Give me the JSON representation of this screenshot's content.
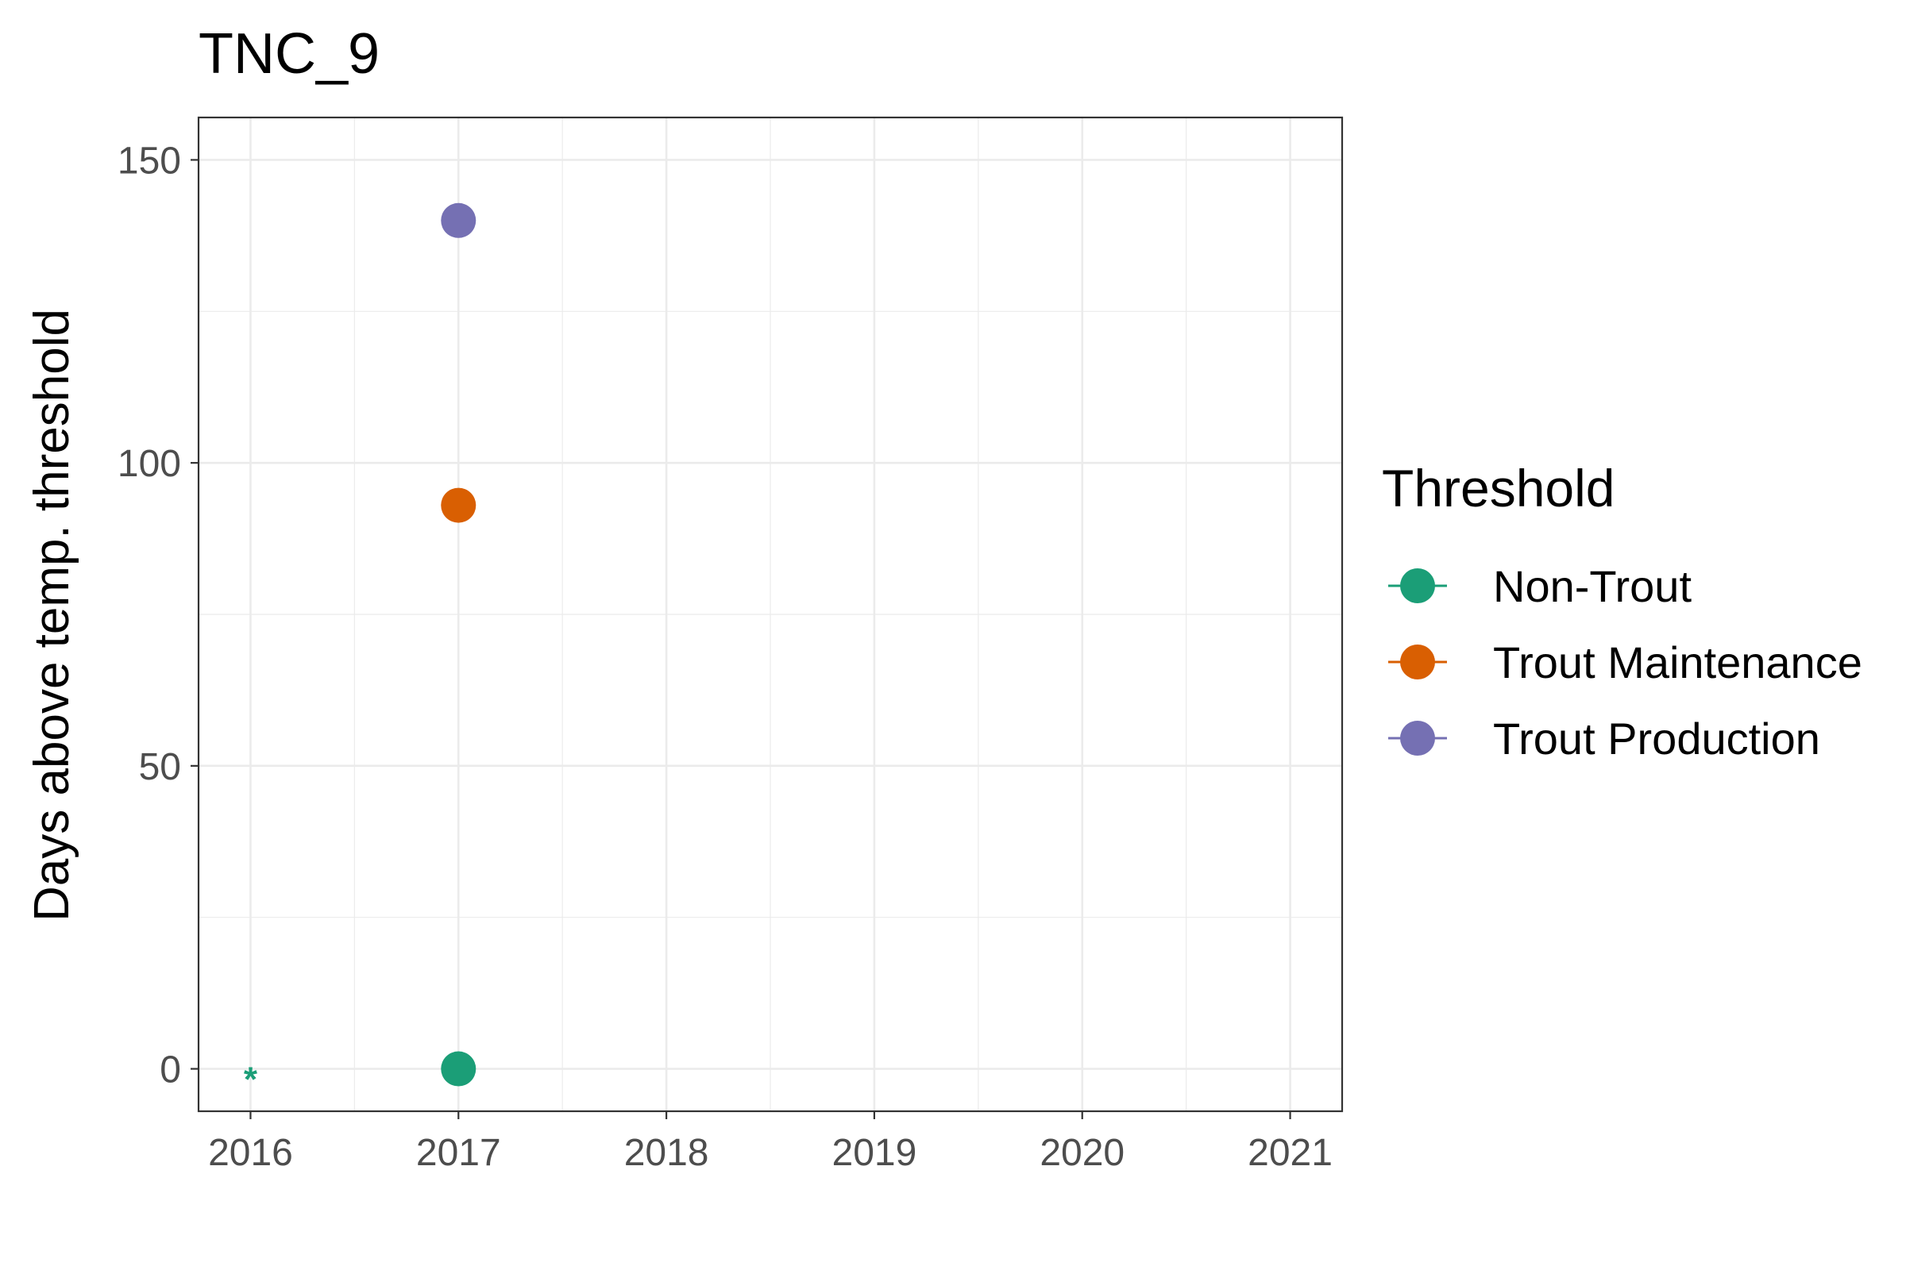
{
  "chart_data": {
    "type": "scatter",
    "title": "TNC_9",
    "xlabel": "",
    "ylabel": "Days above temp. threshold",
    "x_ticks": [
      "2016",
      "2017",
      "2018",
      "2019",
      "2020",
      "2021"
    ],
    "y_ticks": [
      "0",
      "50",
      "100",
      "150"
    ],
    "xlim": [
      2015.75,
      2021.25
    ],
    "ylim": [
      -7,
      157
    ],
    "grid": true,
    "legend_title": "Threshold",
    "legend_placement": "right",
    "series": [
      {
        "name": "Non-Trout",
        "color": "#1b9e77",
        "points": [
          {
            "x": 2017,
            "y": 0
          }
        ]
      },
      {
        "name": "Trout Maintenance",
        "color": "#d95f02",
        "points": [
          {
            "x": 2017,
            "y": 93
          }
        ]
      },
      {
        "name": "Trout Production",
        "color": "#7570b3",
        "points": [
          {
            "x": 2017,
            "y": 140
          }
        ]
      }
    ],
    "annotations": [
      {
        "text": "*",
        "x": 2016,
        "y": 0,
        "color": "#1b9e77"
      }
    ]
  }
}
